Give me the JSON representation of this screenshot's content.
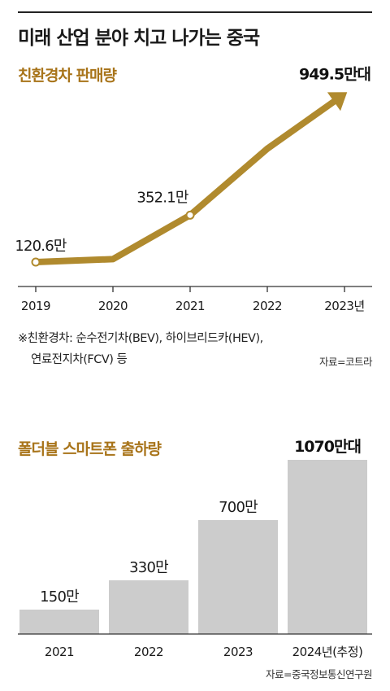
{
  "title": "미래 산업 분야 치고 나가는 중국",
  "colors": {
    "line": "#b08a2e",
    "bar": "#cccccc",
    "accent_text": "#a8741a"
  },
  "chart_data": [
    {
      "type": "line",
      "title": "친환경차 판매량",
      "categories": [
        "2019",
        "2020",
        "2021",
        "2022",
        "2023년"
      ],
      "values": [
        120.6,
        135,
        352.1,
        680,
        949.5
      ],
      "labels": [
        "120.6만",
        "",
        "352.1만",
        "",
        "949.5만대"
      ],
      "markers": [
        true,
        false,
        true,
        false,
        false
      ],
      "ylim": [
        0,
        1000
      ],
      "grid": false,
      "note_lines": [
        "※친환경차: 순수전기차(BEV), 하이브리드카(HEV),",
        "연료전지차(FCV) 등"
      ],
      "source": "자료=코트라"
    },
    {
      "type": "bar",
      "title": "폴더블 스마트폰 출하량",
      "categories": [
        "2021",
        "2022",
        "2023",
        "2024년(추정)"
      ],
      "values": [
        150,
        330,
        700,
        1070
      ],
      "labels": [
        "150만",
        "330만",
        "700만",
        "1070만대"
      ],
      "ylim": [
        0,
        1070
      ],
      "grid": false,
      "source": "자료=중국정보통신연구원"
    }
  ]
}
